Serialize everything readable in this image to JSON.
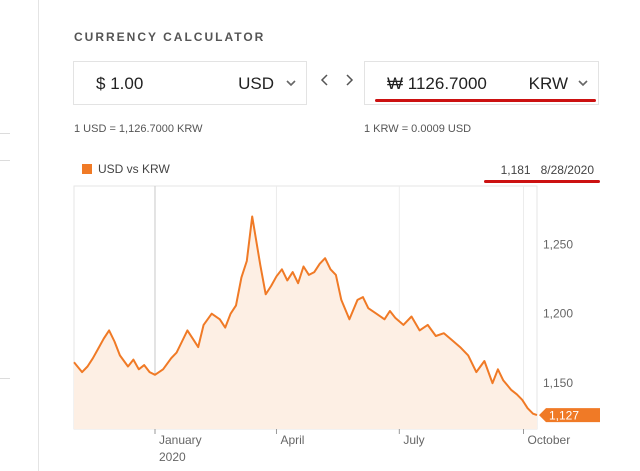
{
  "calculator": {
    "title": "CURRENCY CALCULATOR",
    "from": {
      "symbol": "$",
      "amount": "1.00",
      "currency": "USD"
    },
    "to": {
      "symbol": "₩",
      "amount": "1126.7000",
      "currency": "KRW"
    },
    "from_rate": "1 USD = 1,126.7000 KRW",
    "to_rate": "1 KRW = 0.0009 USD"
  },
  "chart_data": {
    "type": "area",
    "title": "",
    "legend": "USD vs KRW",
    "hover_value": "1,181",
    "hover_date": "8/28/2020",
    "current_label": "1,127",
    "y_ticks": [
      "1,250",
      "1,200",
      "1,150"
    ],
    "ylim": [
      1117,
      1292
    ],
    "x_ticks": [
      {
        "label": "January",
        "sub": "2020",
        "day": 60
      },
      {
        "label": "April",
        "sub": "",
        "day": 150
      },
      {
        "label": "July",
        "sub": "",
        "day": 241
      },
      {
        "label": "October",
        "sub": "",
        "day": 333
      }
    ],
    "series": [
      {
        "name": "USD vs KRW",
        "x_days": [
          0,
          6,
          10,
          14,
          18,
          22,
          26,
          30,
          34,
          40,
          44,
          48,
          52,
          56,
          60,
          66,
          72,
          76,
          80,
          84,
          88,
          92,
          96,
          102,
          108,
          112,
          116,
          120,
          124,
          128,
          132,
          138,
          142,
          146,
          150,
          154,
          158,
          162,
          166,
          170,
          174,
          178,
          182,
          186,
          190,
          194,
          198,
          204,
          210,
          214,
          218,
          224,
          230,
          234,
          238,
          244,
          250,
          256,
          262,
          268,
          274,
          280,
          286,
          292,
          298,
          304,
          310,
          314,
          318,
          324,
          328,
          332,
          336,
          340,
          343
        ],
        "values": [
          1165,
          1158,
          1162,
          1168,
          1175,
          1182,
          1188,
          1180,
          1170,
          1162,
          1167,
          1160,
          1163,
          1158,
          1156,
          1160,
          1168,
          1172,
          1180,
          1188,
          1182,
          1176,
          1192,
          1200,
          1196,
          1190,
          1200,
          1206,
          1226,
          1238,
          1270,
          1235,
          1214,
          1220,
          1227,
          1232,
          1224,
          1230,
          1222,
          1234,
          1228,
          1230,
          1236,
          1240,
          1232,
          1228,
          1210,
          1196,
          1210,
          1212,
          1204,
          1200,
          1196,
          1202,
          1197,
          1192,
          1198,
          1188,
          1192,
          1184,
          1186,
          1181,
          1176,
          1170,
          1158,
          1166,
          1150,
          1160,
          1152,
          1145,
          1142,
          1138,
          1132,
          1128,
          1127
        ]
      }
    ]
  },
  "colors": {
    "accent": "#f07a26",
    "fill": "#fdefe4",
    "highlight": "#cc1111"
  }
}
